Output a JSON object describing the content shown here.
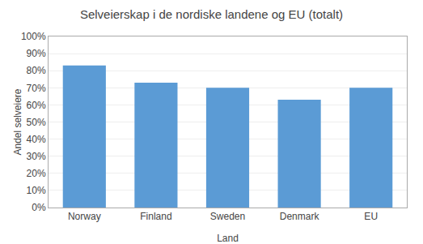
{
  "chart_data": {
    "type": "bar",
    "title": "Selveierskap i de nordiske landene og EU (totalt)",
    "xlabel": "Land",
    "ylabel": "Andel selveiere",
    "categories": [
      "Norway",
      "Finland",
      "Sweden",
      "Denmark",
      "EU"
    ],
    "values": [
      0.83,
      0.73,
      0.7,
      0.63,
      0.7
    ],
    "color": "#5B9BD5",
    "ylim": [
      0.0,
      1.0
    ],
    "yticks": [
      {
        "value": 0.0,
        "label": "0%"
      },
      {
        "value": 0.1,
        "label": "10%"
      },
      {
        "value": 0.2,
        "label": "20%"
      },
      {
        "value": 0.3,
        "label": "30%"
      },
      {
        "value": 0.4,
        "label": "40%"
      },
      {
        "value": 0.5,
        "label": "50%"
      },
      {
        "value": 0.6,
        "label": "60%"
      },
      {
        "value": 0.7,
        "label": "70%"
      },
      {
        "value": 0.8,
        "label": "80%"
      },
      {
        "value": 0.9,
        "label": "90%"
      },
      {
        "value": 1.0,
        "label": "100%"
      }
    ],
    "grid": true
  }
}
